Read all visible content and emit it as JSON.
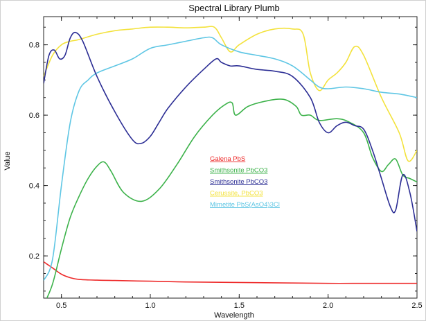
{
  "chart_data": {
    "type": "line",
    "title": "Spectral Library Plumb",
    "xlabel": "Wavelength",
    "ylabel": "Value",
    "xlim": [
      0.4,
      2.5
    ],
    "ylim": [
      0.08,
      0.88
    ],
    "xticks": [
      0.5,
      1.0,
      1.5,
      2.0,
      2.5
    ],
    "xtick_labels": [
      "0.5",
      "1.0",
      "1.5",
      "2.0",
      "2.5"
    ],
    "yticks": [
      0.2,
      0.4,
      0.6,
      0.8
    ],
    "ytick_labels": [
      "0.2",
      "0.4",
      "0.6",
      "0.8"
    ],
    "grid": false,
    "legend_position": "center",
    "series": [
      {
        "name": "Galena PbS",
        "color": "#ee2a2a",
        "x": [
          0.4,
          0.45,
          0.5,
          0.55,
          0.6,
          0.7,
          0.8,
          1.0,
          1.2,
          1.4,
          1.6,
          1.8,
          2.0,
          2.2,
          2.4,
          2.5
        ],
        "y": [
          0.183,
          0.166,
          0.148,
          0.138,
          0.133,
          0.131,
          0.13,
          0.128,
          0.126,
          0.125,
          0.124,
          0.123,
          0.122,
          0.122,
          0.122,
          0.122
        ]
      },
      {
        "name": "Smithsonite PbCO3",
        "color": "#3cb24a",
        "x": [
          0.4,
          0.45,
          0.5,
          0.55,
          0.6,
          0.65,
          0.7,
          0.74,
          0.78,
          0.85,
          0.95,
          1.05,
          1.15,
          1.25,
          1.35,
          1.42,
          1.46,
          1.48,
          1.55,
          1.65,
          1.75,
          1.82,
          1.85,
          1.9,
          1.95,
          2.05,
          2.12,
          2.2,
          2.25,
          2.3,
          2.34,
          2.38,
          2.42,
          2.46,
          2.5
        ],
        "y": [
          0.06,
          0.12,
          0.22,
          0.31,
          0.37,
          0.42,
          0.455,
          0.467,
          0.44,
          0.38,
          0.355,
          0.39,
          0.46,
          0.54,
          0.6,
          0.63,
          0.635,
          0.6,
          0.625,
          0.64,
          0.645,
          0.625,
          0.6,
          0.6,
          0.585,
          0.59,
          0.58,
          0.55,
          0.48,
          0.44,
          0.46,
          0.475,
          0.43,
          0.42,
          0.41
        ]
      },
      {
        "name": "Smithsonite PbCO3",
        "color": "#2b2d94",
        "x": [
          0.4,
          0.43,
          0.46,
          0.49,
          0.52,
          0.55,
          0.58,
          0.62,
          0.7,
          0.8,
          0.9,
          0.95,
          1.0,
          1.05,
          1.1,
          1.2,
          1.3,
          1.37,
          1.4,
          1.45,
          1.5,
          1.6,
          1.7,
          1.8,
          1.9,
          1.95,
          2.0,
          2.05,
          2.1,
          2.15,
          2.2,
          2.25,
          2.3,
          2.35,
          2.38,
          2.42,
          2.46,
          2.5
        ],
        "y": [
          0.69,
          0.77,
          0.785,
          0.76,
          0.77,
          0.82,
          0.835,
          0.81,
          0.71,
          0.61,
          0.53,
          0.52,
          0.54,
          0.58,
          0.62,
          0.68,
          0.73,
          0.76,
          0.75,
          0.74,
          0.74,
          0.73,
          0.725,
          0.71,
          0.65,
          0.58,
          0.55,
          0.57,
          0.58,
          0.57,
          0.56,
          0.5,
          0.42,
          0.34,
          0.33,
          0.43,
          0.38,
          0.27
        ]
      },
      {
        "name": "Cerussite, PbCO3",
        "color": "#f3e23c",
        "x": [
          0.4,
          0.45,
          0.5,
          0.55,
          0.6,
          0.7,
          0.8,
          0.9,
          1.0,
          1.1,
          1.2,
          1.3,
          1.36,
          1.4,
          1.45,
          1.5,
          1.6,
          1.7,
          1.8,
          1.86,
          1.9,
          1.95,
          2.0,
          2.05,
          2.1,
          2.15,
          2.2,
          2.3,
          2.4,
          2.45,
          2.5
        ],
        "y": [
          0.71,
          0.77,
          0.8,
          0.81,
          0.815,
          0.83,
          0.84,
          0.845,
          0.85,
          0.85,
          0.848,
          0.85,
          0.85,
          0.82,
          0.78,
          0.8,
          0.83,
          0.845,
          0.845,
          0.83,
          0.72,
          0.67,
          0.7,
          0.72,
          0.75,
          0.795,
          0.77,
          0.65,
          0.55,
          0.47,
          0.5
        ]
      },
      {
        "name": "Mimetite PbS(AsO4)3Cl",
        "color": "#5ec6e4",
        "x": [
          0.4,
          0.45,
          0.5,
          0.55,
          0.6,
          0.65,
          0.7,
          0.8,
          0.9,
          1.0,
          1.1,
          1.2,
          1.3,
          1.35,
          1.4,
          1.5,
          1.6,
          1.7,
          1.8,
          1.9,
          1.95,
          2.0,
          2.1,
          2.2,
          2.3,
          2.4,
          2.5
        ],
        "y": [
          0.13,
          0.19,
          0.4,
          0.58,
          0.67,
          0.7,
          0.72,
          0.74,
          0.76,
          0.79,
          0.8,
          0.81,
          0.82,
          0.82,
          0.8,
          0.78,
          0.77,
          0.76,
          0.74,
          0.7,
          0.68,
          0.675,
          0.68,
          0.675,
          0.665,
          0.66,
          0.65
        ]
      }
    ]
  }
}
